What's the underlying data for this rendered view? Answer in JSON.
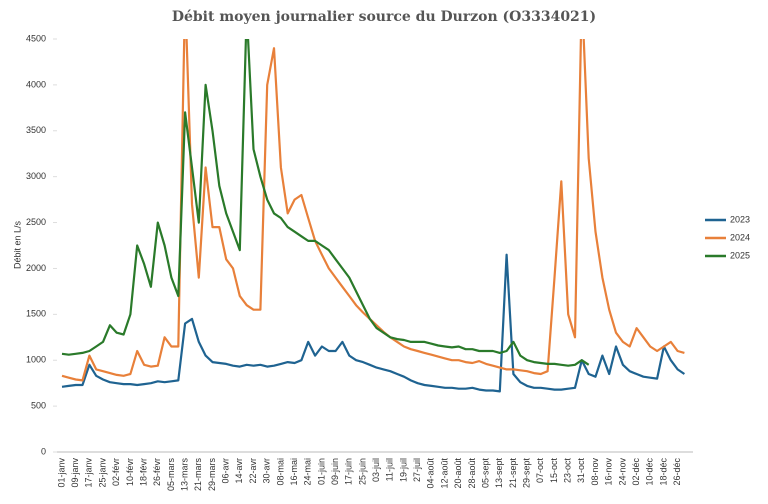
{
  "chart_data": {
    "type": "line",
    "title": "Débit moyen journalier source du Durzon (O3334021)",
    "y_label": "Débit en L/s",
    "categories": [
      "01-janv",
      null,
      "09-janv",
      null,
      "17-janv",
      null,
      "25-janv",
      null,
      "02-févr",
      null,
      "10-févr",
      null,
      "18-févr",
      null,
      "26-févr",
      null,
      "05-mars",
      null,
      "13-mars",
      null,
      "21-mars",
      null,
      "29-mars",
      null,
      "06-avr",
      null,
      "14-avr",
      null,
      "22-avr",
      null,
      "30-avr",
      null,
      "08-mai",
      null,
      "16-mai",
      null,
      "24-mai",
      null,
      "01-juin",
      null,
      "09-juin",
      null,
      "17-juin",
      null,
      "25-juin",
      null,
      "03-juil",
      null,
      "11-juil",
      null,
      "19-juil",
      null,
      "27-juil",
      null,
      "04-août",
      null,
      "12-août",
      null,
      "20-août",
      null,
      "28-août",
      null,
      "05-sept",
      null,
      "13-sept",
      null,
      "21-sept",
      null,
      "29-sept",
      null,
      "07-oct",
      null,
      "15-oct",
      null,
      "23-oct",
      null,
      "31-oct",
      null,
      "08-nov",
      null,
      "16-nov",
      null,
      "24-nov",
      null,
      "02-déc",
      null,
      "10-déc",
      null,
      "18-déc",
      null,
      "26-déc",
      null
    ],
    "series": [
      {
        "name": "2023",
        "color": "#1f6391",
        "values": [
          710,
          720,
          730,
          730,
          950,
          830,
          790,
          760,
          750,
          740,
          740,
          730,
          740,
          750,
          770,
          760,
          770,
          780,
          1400,
          1450,
          1200,
          1050,
          980,
          970,
          960,
          940,
          930,
          950,
          940,
          950,
          930,
          940,
          960,
          980,
          970,
          1000,
          1200,
          1050,
          1150,
          1100,
          1100,
          1200,
          1050,
          1000,
          980,
          950,
          920,
          900,
          880,
          850,
          820,
          780,
          750,
          730,
          720,
          710,
          700,
          700,
          690,
          690,
          700,
          680,
          670,
          670,
          660,
          2150,
          850,
          760,
          720,
          700,
          700,
          690,
          680,
          680,
          690,
          700,
          1000,
          850,
          820,
          1050,
          850,
          1150,
          950,
          880,
          850,
          820,
          810,
          800,
          1150,
          1000,
          900,
          850
        ]
      },
      {
        "name": "2024",
        "color": "#e8803a",
        "values": [
          830,
          810,
          790,
          780,
          1050,
          900,
          880,
          860,
          840,
          830,
          850,
          1100,
          950,
          930,
          940,
          1250,
          1150,
          1150,
          5000,
          2700,
          1900,
          3100,
          2450,
          2450,
          2100,
          2000,
          1700,
          1600,
          1550,
          1550,
          4000,
          4400,
          3100,
          2600,
          2750,
          2800,
          2550,
          2300,
          2150,
          2000,
          1900,
          1800,
          1700,
          1600,
          1520,
          1450,
          1380,
          1310,
          1250,
          1200,
          1150,
          1120,
          1100,
          1080,
          1060,
          1040,
          1020,
          1000,
          1000,
          980,
          970,
          990,
          960,
          940,
          920,
          900,
          900,
          890,
          880,
          860,
          850,
          880,
          1900,
          2950,
          1500,
          1250,
          5000,
          3200,
          2400,
          1900,
          1550,
          1300,
          1200,
          1150,
          1350,
          1250,
          1150,
          1100,
          1150,
          1200,
          1100,
          1080
        ]
      },
      {
        "name": "2025",
        "color": "#2a7a2a",
        "values": [
          1070,
          1060,
          1070,
          1080,
          1100,
          1150,
          1200,
          1380,
          1300,
          1280,
          1500,
          2250,
          2050,
          1800,
          2500,
          2250,
          1900,
          1700,
          3700,
          3100,
          2500,
          4000,
          3500,
          2900,
          2600,
          2400,
          2200,
          4800,
          3300,
          3000,
          2750,
          2600,
          2550,
          2450,
          2400,
          2350,
          2300,
          2300,
          2250,
          2200,
          2100,
          2000,
          1900,
          1750,
          1600,
          1450,
          1350,
          1300,
          1250,
          1230,
          1220,
          1200,
          1200,
          1200,
          1180,
          1160,
          1150,
          1140,
          1150,
          1120,
          1120,
          1100,
          1100,
          1100,
          1080,
          1100,
          1200,
          1050,
          1000,
          980,
          970,
          960,
          960,
          950,
          940,
          950,
          1000,
          950,
          null,
          null,
          null,
          null,
          null,
          null,
          null,
          null,
          null,
          null,
          null,
          null,
          null,
          null
        ]
      }
    ],
    "ylim": [
      0,
      4500
    ],
    "yticks": [
      0,
      500,
      1000,
      1500,
      2000,
      2500,
      3000,
      3500,
      4000,
      4500
    ],
    "legend": "right"
  }
}
